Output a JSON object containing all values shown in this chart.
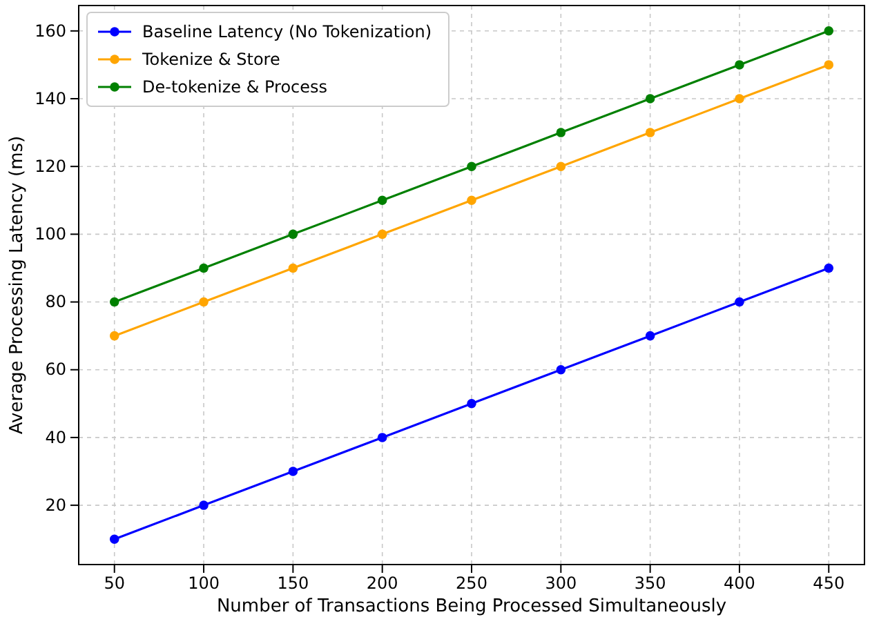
{
  "chart_data": {
    "type": "line",
    "xlabel": "Number of Transactions Being Processed Simultaneously",
    "ylabel": "Average Processing Latency (ms)",
    "x": [
      50,
      100,
      150,
      200,
      250,
      300,
      350,
      400,
      450
    ],
    "series": [
      {
        "name": "Baseline Latency (No Tokenization)",
        "color": "#0000ff",
        "values": [
          10,
          20,
          30,
          40,
          50,
          60,
          70,
          80,
          90
        ]
      },
      {
        "name": "Tokenize & Store",
        "color": "#ffa500",
        "values": [
          70,
          80,
          90,
          100,
          110,
          120,
          130,
          140,
          150
        ]
      },
      {
        "name": "De-tokenize & Process",
        "color": "#008000",
        "values": [
          80,
          90,
          100,
          110,
          120,
          130,
          140,
          150,
          160
        ]
      }
    ],
    "xlim": [
      30,
      470
    ],
    "ylim": [
      2.5,
      167.5
    ],
    "xticks": [
      50,
      100,
      150,
      200,
      250,
      300,
      350,
      400,
      450
    ],
    "yticks": [
      20,
      40,
      60,
      80,
      100,
      120,
      140,
      160
    ],
    "grid": true,
    "legend": "top left",
    "marker": "circle",
    "line_style": "solid"
  }
}
